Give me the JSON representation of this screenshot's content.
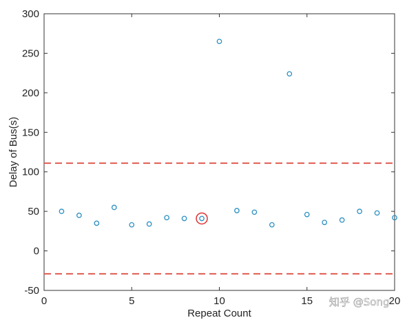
{
  "chart_data": {
    "type": "scatter",
    "title": "",
    "xlabel": "Repeat Count",
    "ylabel": "Delay of Bus(s)",
    "xlim": [
      0,
      20
    ],
    "ylim": [
      -50,
      300
    ],
    "xticks": [
      "0",
      "5",
      "10",
      "15",
      "20"
    ],
    "yticks": [
      "-50",
      "0",
      "50",
      "100",
      "150",
      "200",
      "250",
      "300"
    ],
    "grid": false,
    "series": [
      {
        "x": [
          1,
          2,
          3,
          4,
          5,
          6,
          7,
          8,
          9,
          10,
          11,
          12,
          13,
          14,
          15,
          16,
          17,
          18,
          19,
          20
        ],
        "y": [
          50,
          45,
          35,
          55,
          33,
          34,
          42,
          41,
          41,
          265,
          51,
          49,
          33,
          224,
          46,
          36,
          39,
          50,
          48,
          42
        ],
        "color": "#2a8fc2"
      }
    ],
    "highlight": {
      "x": 9,
      "y": 41,
      "color": "#e03030"
    },
    "reference_lines": [
      {
        "y": 111,
        "style": "dashed",
        "color": "#e05a4e"
      },
      {
        "y": -29,
        "style": "dashed",
        "color": "#e05a4e"
      }
    ]
  },
  "watermark": "知乎 @Song"
}
